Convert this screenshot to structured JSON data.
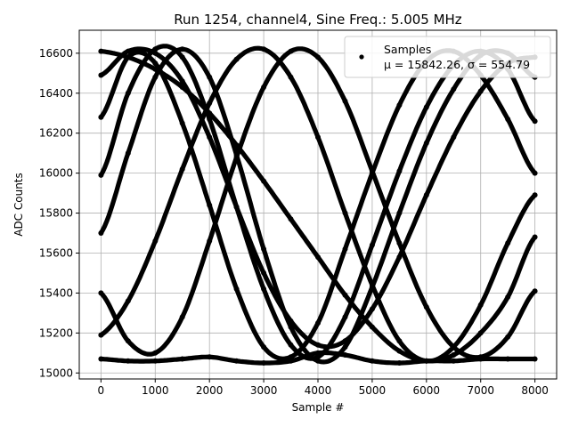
{
  "chart_data": {
    "type": "scatter",
    "title": "Run 1254, channel4, Sine Freq.: 5.005 MHz",
    "xlabel": "Sample #",
    "ylabel": "ADC Counts",
    "xlim": [
      -400,
      8400
    ],
    "ylim": [
      14970,
      16715
    ],
    "xticks": [
      0,
      1000,
      2000,
      3000,
      4000,
      5000,
      6000,
      7000,
      8000
    ],
    "yticks": [
      15000,
      15200,
      15400,
      15600,
      15800,
      16000,
      16200,
      16400,
      16600
    ],
    "grid": true,
    "legend_position": "top-right",
    "marker_color": "#000000",
    "legend": {
      "label": "Samples",
      "stats": "μ = 15842.26, σ = 554.79"
    },
    "series": [
      {
        "name": "Samples",
        "x": [
          0,
          500,
          1000,
          1500,
          2000,
          2500,
          3000,
          3500,
          4000,
          4500,
          5000,
          5500,
          6000,
          6500,
          7000,
          7500,
          8000
        ],
        "traces": [
          [
            16610,
            16580,
            16520,
            16430,
            16300,
            16140,
            15960,
            15770,
            15580,
            15390,
            15230,
            15110,
            15060,
            15090,
            15200,
            15380,
            15680
          ],
          [
            16490,
            16610,
            16600,
            16460,
            16180,
            15830,
            15500,
            15260,
            15140,
            15160,
            15320,
            15580,
            15890,
            16180,
            16410,
            16550,
            16580
          ],
          [
            16280,
            16580,
            16550,
            16250,
            15840,
            15420,
            15130,
            15080,
            15250,
            15620,
            16000,
            16340,
            16560,
            16610,
            16490,
            16270,
            16000
          ],
          [
            15990,
            16400,
            16620,
            16580,
            16270,
            15830,
            15420,
            15140,
            15080,
            15280,
            15640,
            16010,
            16330,
            16540,
            16610,
            16520,
            16260
          ],
          [
            15700,
            16100,
            16480,
            16620,
            16480,
            16090,
            15620,
            15230,
            15060,
            15130,
            15430,
            15800,
            16150,
            16420,
            16590,
            16600,
            16480
          ],
          [
            15400,
            15160,
            15100,
            15280,
            15660,
            16080,
            16430,
            16610,
            16580,
            16360,
            16010,
            15650,
            15330,
            15130,
            15080,
            15180,
            15410
          ],
          [
            15190,
            15360,
            15660,
            16020,
            16350,
            16570,
            16620,
            16480,
            16180,
            15800,
            15440,
            15160,
            15060,
            15130,
            15340,
            15650,
            15890
          ],
          [
            15070,
            15060,
            15060,
            15070,
            15080,
            15060,
            15050,
            15060,
            15100,
            15090,
            15060,
            15050,
            15060,
            15060,
            15070,
            15070,
            15070
          ]
        ]
      }
    ]
  }
}
